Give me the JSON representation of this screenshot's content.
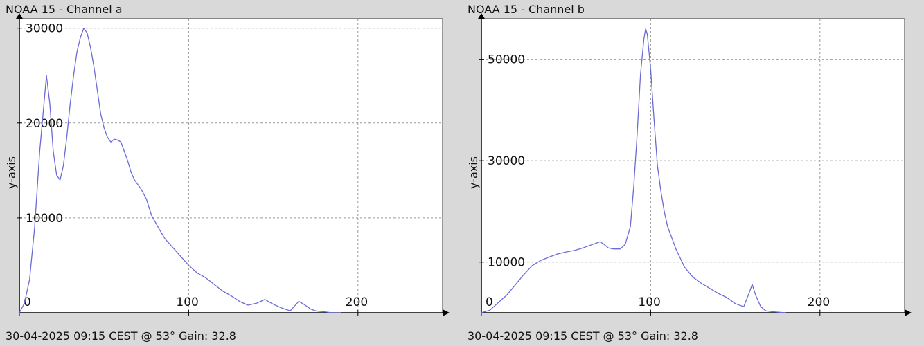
{
  "chart_data": [
    {
      "type": "line",
      "title": "NOAA 15 - Channel a",
      "subtitle": "30-04-2025 09:15 CEST @ 53° Gain: 32.8",
      "xlabel": "",
      "ylabel": "y-axis",
      "xlim": [
        0,
        250
      ],
      "ylim": [
        0,
        31000
      ],
      "grid": true,
      "line_color": "#6b6bd6",
      "x_ticks": [
        "0",
        "100",
        "200"
      ],
      "y_ticks": [
        "10000",
        "20000",
        "30000"
      ],
      "series": [
        {
          "x": [
            0,
            3,
            6,
            9,
            12,
            14,
            16,
            18,
            20,
            22,
            24,
            26,
            28,
            30,
            32,
            34,
            36,
            38,
            40,
            42,
            44,
            46,
            48,
            50,
            52,
            54,
            56,
            58,
            60,
            62,
            64,
            66,
            68,
            70,
            72,
            75,
            78,
            82,
            86,
            90,
            95,
            100,
            105,
            110,
            115,
            120,
            125,
            130,
            135,
            140,
            145,
            150,
            155,
            160,
            165,
            168,
            172,
            175,
            180,
            185,
            190
          ],
          "y": [
            0,
            1000,
            3500,
            9000,
            17000,
            21000,
            25000,
            22000,
            17000,
            14500,
            14000,
            15500,
            18500,
            22000,
            25000,
            27500,
            29000,
            30000,
            29500,
            28000,
            26000,
            23500,
            21000,
            19500,
            18500,
            18000,
            18300,
            18200,
            18000,
            17000,
            16000,
            14800,
            14000,
            13500,
            13000,
            12000,
            10300,
            9000,
            7800,
            7000,
            6000,
            5000,
            4200,
            3700,
            3000,
            2300,
            1800,
            1200,
            800,
            1000,
            1400,
            900,
            500,
            200,
            1200,
            900,
            400,
            200,
            100,
            0,
            0
          ]
        }
      ]
    },
    {
      "type": "line",
      "title": "NOAA 15 - Channel b",
      "subtitle": "30-04-2025 09:15 CEST @ 53° Gain: 32.8",
      "xlabel": "",
      "ylabel": "y-axis",
      "xlim": [
        0,
        250
      ],
      "ylim": [
        0,
        58000
      ],
      "grid": true,
      "line_color": "#6b6bd6",
      "x_ticks": [
        "0",
        "100",
        "200"
      ],
      "y_ticks": [
        "10000",
        "30000",
        "50000"
      ],
      "series": [
        {
          "x": [
            0,
            5,
            10,
            15,
            20,
            25,
            30,
            35,
            40,
            45,
            50,
            55,
            60,
            65,
            70,
            72,
            75,
            78,
            82,
            85,
            88,
            90,
            92,
            94,
            96,
            97,
            98,
            100,
            102,
            104,
            106,
            108,
            110,
            115,
            120,
            125,
            130,
            135,
            140,
            145,
            150,
            155,
            158,
            160,
            162,
            165,
            168,
            172,
            176,
            180
          ],
          "y": [
            0,
            500,
            2000,
            3500,
            5500,
            7500,
            9300,
            10300,
            11000,
            11600,
            12000,
            12300,
            12800,
            13400,
            14000,
            13600,
            12800,
            12600,
            12600,
            13500,
            17000,
            25000,
            35000,
            47000,
            54000,
            56000,
            55000,
            48000,
            38000,
            29000,
            24000,
            20000,
            17000,
            12500,
            9000,
            7000,
            5800,
            4800,
            3800,
            3000,
            1800,
            1200,
            3800,
            5600,
            3500,
            1200,
            400,
            200,
            100,
            0
          ]
        }
      ]
    }
  ]
}
